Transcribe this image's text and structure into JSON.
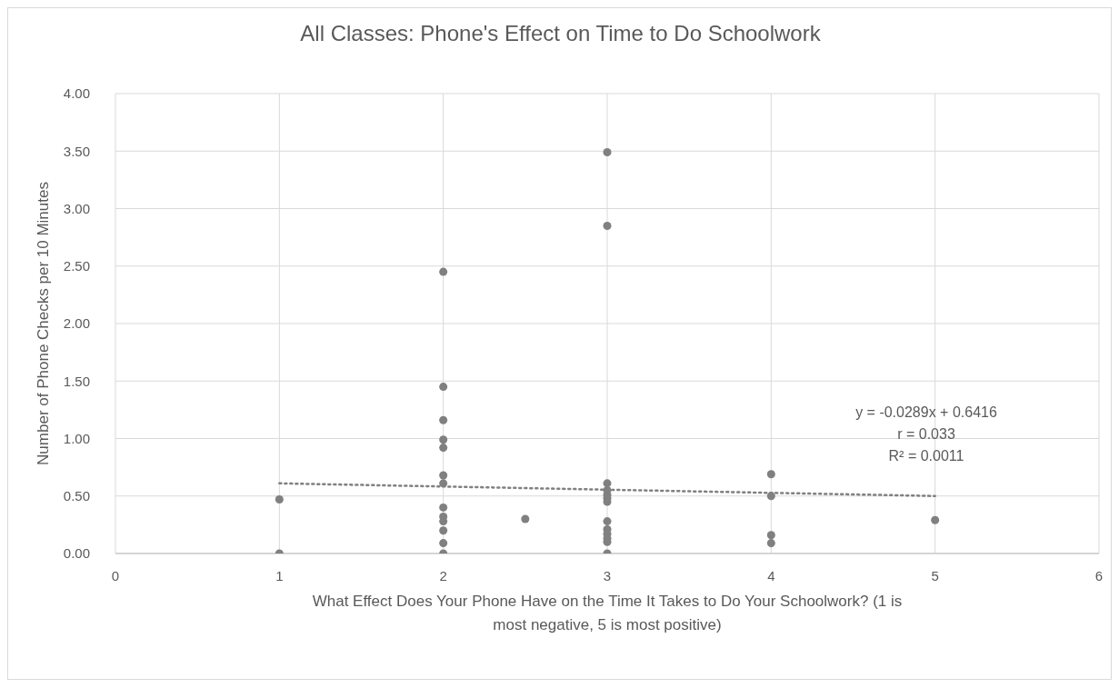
{
  "chart_data": {
    "type": "scatter",
    "title": "All Classes: Phone's Effect on Time to Do Schoolwork",
    "xlabel": "What Effect Does Your Phone Have on the Time It Takes to Do Your Schoolwork? (1 is most negative, 5 is most positive)",
    "ylabel": "Number of Phone Checks per 10 Minutes",
    "xlim": [
      0,
      6
    ],
    "xticks": [
      0,
      1,
      2,
      3,
      4,
      5,
      6
    ],
    "ylim": [
      0,
      4
    ],
    "yticks": [
      {
        "value": 0,
        "label": "0.00"
      },
      {
        "value": 0.5,
        "label": "0.50"
      },
      {
        "value": 1,
        "label": "1.00"
      },
      {
        "value": 1.5,
        "label": "1.50"
      },
      {
        "value": 2,
        "label": "2.00"
      },
      {
        "value": 2.5,
        "label": "2.50"
      },
      {
        "value": 3,
        "label": "3.00"
      },
      {
        "value": 3.5,
        "label": "3.50"
      },
      {
        "value": 4,
        "label": "4.00"
      }
    ],
    "grid": true,
    "legend": false,
    "marker": "circle",
    "series": [
      {
        "color": "#808080",
        "x": [
          1,
          1,
          2,
          2,
          2,
          2,
          2,
          2,
          2,
          2,
          2,
          2,
          2,
          2,
          2,
          2.5,
          3,
          3,
          3,
          3,
          3,
          3,
          3,
          3,
          3,
          3,
          3,
          3,
          3,
          4,
          4,
          4,
          4,
          5
        ],
        "values": [
          0.47,
          0,
          2.45,
          1.45,
          1.16,
          0.99,
          0.92,
          0.68,
          0.61,
          0.4,
          0.32,
          0.28,
          0.2,
          0.09,
          0,
          0.3,
          3.49,
          2.85,
          0.61,
          0.55,
          0.51,
          0.48,
          0.45,
          0.28,
          0.21,
          0.17,
          0.13,
          0.1,
          0,
          0.69,
          0.5,
          0.16,
          0.09,
          0.29
        ]
      },
      {
        "type": "line",
        "color": "#808080",
        "line_style": "dotted",
        "marker": "none",
        "x": [
          1,
          5
        ],
        "values": [
          0.61,
          0.5
        ]
      }
    ],
    "annotations": [
      "y = -0.0289x + 0.6416",
      "r = 0.033",
      "R² = 0.0011"
    ]
  }
}
